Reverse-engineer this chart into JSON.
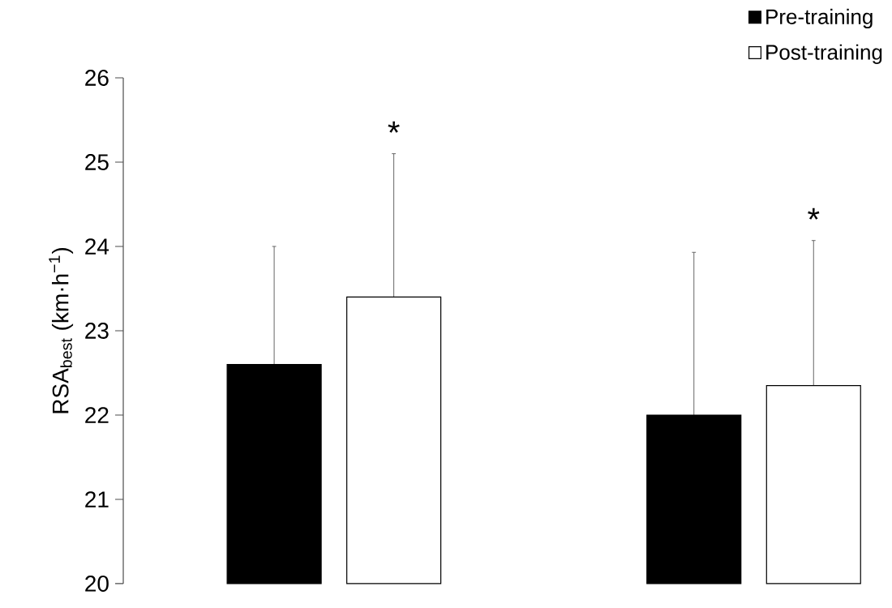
{
  "chart_data": {
    "type": "bar",
    "ylabel": "RSA$_{best}$ (km·h$^{−1}$)",
    "categories": [
      null,
      null
    ],
    "series": [
      {
        "name": "Pre-training",
        "color": "#000000",
        "values": [
          22.6,
          22.0
        ],
        "errors": [
          [
            22.6,
            24.0
          ],
          [
            22.0,
            23.93
          ]
        ]
      },
      {
        "name": "Post-training",
        "color": "#ffffff",
        "values": [
          23.4,
          22.35
        ],
        "errors": [
          [
            23.4,
            25.1
          ],
          [
            22.35,
            24.07
          ]
        ]
      }
    ],
    "ylim": [
      20,
      26
    ],
    "yticks": [
      20,
      21,
      22,
      23,
      24,
      25,
      26
    ],
    "legend": "top right",
    "grid": false,
    "annotations": [
      "*",
      "*"
    ]
  }
}
